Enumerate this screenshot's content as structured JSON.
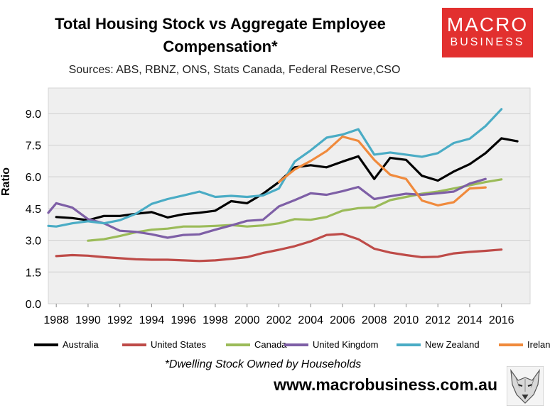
{
  "header": {
    "title_line1": "Total Housing Stock vs Aggregate Employee",
    "title_line2": "Compensation*",
    "subtitle": "Sources: ABS, RBNZ, ONS, Stats Canada, Federal Reserve,CSO"
  },
  "logo": {
    "line1": "MACRO",
    "line2": "BUSINESS",
    "color": "#e2302f"
  },
  "footer": {
    "footnote": "*Dwelling Stock Owned by Households",
    "website": "www.macrobusiness.com.au"
  },
  "chart_data": {
    "type": "line",
    "title": "Total Housing Stock vs Aggregate Employee Compensation*",
    "ylabel": "Ratio",
    "xlabel": "",
    "xlim": [
      1987.5,
      2017.8
    ],
    "ylim": [
      0,
      10.2
    ],
    "x_ticks": [
      1988,
      1990,
      1992,
      1994,
      1996,
      1998,
      2000,
      2002,
      2004,
      2006,
      2008,
      2010,
      2012,
      2014,
      2016
    ],
    "x_tick_labels": [
      "1988",
      "1990",
      "1992",
      "1994",
      "1996",
      "1998",
      "2000",
      "2002",
      "2004",
      "2006",
      "2008",
      "2010",
      "2012",
      "2014",
      "2016"
    ],
    "y_ticks": [
      0,
      1.5,
      3.0,
      4.5,
      6.0,
      7.5,
      9.0
    ],
    "y_tick_labels": [
      "0.0",
      "1.5",
      "3.0",
      "4.5",
      "6.0",
      "7.5",
      "9.0"
    ],
    "grid": "horizontal",
    "legend": "bottom",
    "series": [
      {
        "name": "Australia",
        "color": "#000000",
        "x": [
          1988,
          1989,
          1990,
          1991,
          1992,
          1993,
          1994,
          1995,
          1996,
          1997,
          1998,
          1999,
          2000,
          2001,
          2002,
          2003,
          2004,
          2005,
          2006,
          2007,
          2008,
          2009,
          2010,
          2011,
          2012,
          2013,
          2014,
          2015,
          2016,
          2017
        ],
        "values": [
          4.1,
          4.05,
          3.95,
          4.15,
          4.15,
          4.25,
          4.33,
          4.08,
          4.23,
          4.3,
          4.4,
          4.85,
          4.75,
          5.2,
          5.75,
          6.45,
          6.55,
          6.45,
          6.72,
          6.97,
          5.9,
          6.9,
          6.8,
          6.05,
          5.82,
          6.25,
          6.6,
          7.12,
          7.82,
          7.68
        ]
      },
      {
        "name": "United States",
        "color": "#be4b48",
        "x": [
          1988,
          1989,
          1990,
          1991,
          1992,
          1993,
          1994,
          1995,
          1996,
          1997,
          1998,
          1999,
          2000,
          2001,
          2002,
          2003,
          2004,
          2005,
          2006,
          2007,
          2008,
          2009,
          2010,
          2011,
          2012,
          2013,
          2014,
          2015,
          2016
        ],
        "values": [
          2.25,
          2.3,
          2.27,
          2.2,
          2.15,
          2.1,
          2.08,
          2.08,
          2.05,
          2.02,
          2.05,
          2.12,
          2.2,
          2.4,
          2.55,
          2.72,
          2.95,
          3.25,
          3.3,
          3.05,
          2.6,
          2.42,
          2.3,
          2.2,
          2.22,
          2.38,
          2.45,
          2.5,
          2.56
        ]
      },
      {
        "name": "Canada",
        "color": "#9bbb59",
        "x": [
          1990,
          1991,
          1992,
          1993,
          1994,
          1995,
          1996,
          1997,
          1998,
          1999,
          2000,
          2001,
          2002,
          2003,
          2004,
          2005,
          2006,
          2007,
          2008,
          2009,
          2010,
          2011,
          2012,
          2013,
          2014,
          2015,
          2016
        ],
        "values": [
          2.98,
          3.05,
          3.2,
          3.38,
          3.5,
          3.55,
          3.65,
          3.65,
          3.68,
          3.72,
          3.65,
          3.7,
          3.8,
          4.0,
          3.97,
          4.1,
          4.4,
          4.52,
          4.55,
          4.9,
          5.05,
          5.2,
          5.3,
          5.45,
          5.6,
          5.75,
          5.88
        ]
      },
      {
        "name": "United Kingdom",
        "color": "#7e5fa6",
        "x": [
          1987.5,
          1988,
          1989,
          1990,
          1991,
          1992,
          1993,
          1994,
          1995,
          1996,
          1997,
          1998,
          1999,
          2000,
          2001,
          2002,
          2003,
          2004,
          2005,
          2006,
          2007,
          2008,
          2009,
          2010,
          2011,
          2012,
          2013,
          2014,
          2015
        ],
        "values": [
          4.3,
          4.75,
          4.55,
          4.0,
          3.8,
          3.45,
          3.4,
          3.28,
          3.12,
          3.25,
          3.28,
          3.5,
          3.7,
          3.92,
          3.97,
          4.6,
          4.9,
          5.22,
          5.15,
          5.32,
          5.52,
          4.95,
          5.08,
          5.2,
          5.15,
          5.22,
          5.3,
          5.68,
          5.9
        ]
      },
      {
        "name": "New Zealand",
        "color": "#4aacc5",
        "x": [
          1987.5,
          1988,
          1989,
          1990,
          1991,
          1992,
          1993,
          1994,
          1995,
          1996,
          1997,
          1998,
          1999,
          2000,
          2001,
          2002,
          2003,
          2004,
          2005,
          2006,
          2007,
          2008,
          2009,
          2010,
          2011,
          2012,
          2013,
          2014,
          2015,
          2016
        ],
        "values": [
          3.68,
          3.65,
          3.8,
          3.9,
          3.8,
          3.95,
          4.25,
          4.72,
          4.95,
          5.12,
          5.3,
          5.05,
          5.1,
          5.05,
          5.12,
          5.45,
          6.72,
          7.25,
          7.85,
          8.0,
          8.25,
          7.05,
          7.15,
          7.05,
          6.95,
          7.12,
          7.6,
          7.8,
          8.4,
          9.2
        ]
      },
      {
        "name": "Ireland",
        "color": "#f08a3c",
        "x": [
          2002,
          2003,
          2004,
          2005,
          2006,
          2007,
          2008,
          2009,
          2010,
          2011,
          2012,
          2013,
          2014,
          2015
        ],
        "values": [
          5.75,
          6.35,
          6.75,
          7.22,
          7.9,
          7.7,
          6.8,
          6.1,
          5.9,
          4.88,
          4.65,
          4.8,
          5.45,
          5.5
        ]
      }
    ]
  }
}
